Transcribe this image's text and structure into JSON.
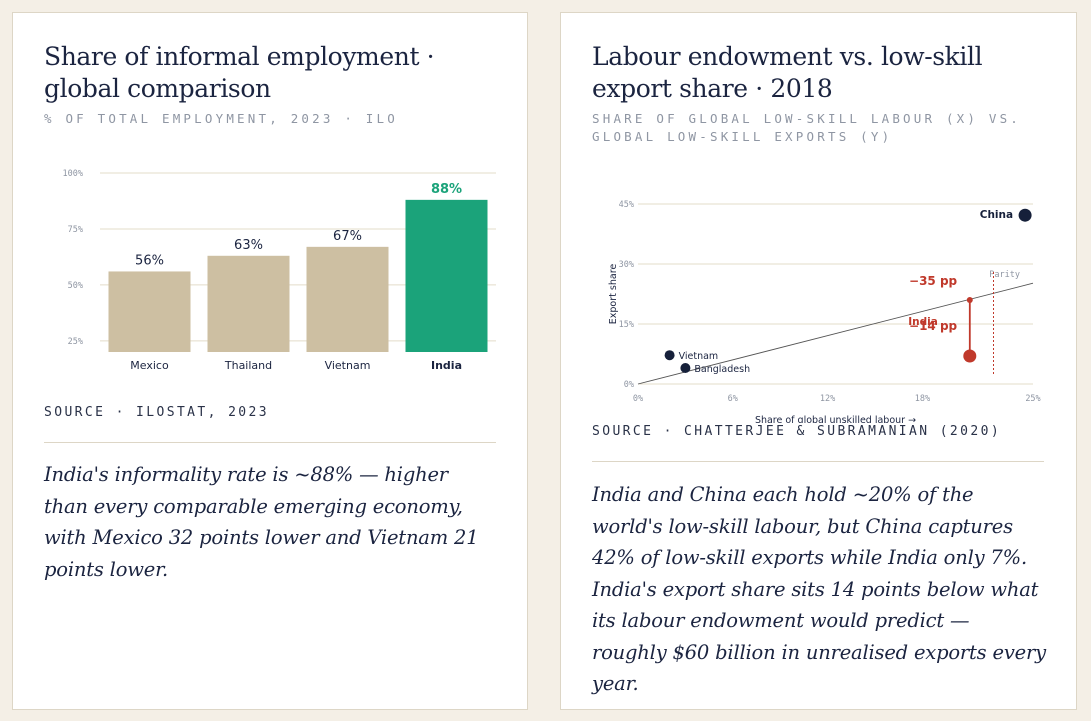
{
  "cards": [
    {
      "title_line1": "Share of informal employment ·",
      "title_line2": "global comparison",
      "subtitle": "% OF TOTAL EMPLOYMENT, 2023 · ILO",
      "source": "SOURCE · ILOSTAT, 2023",
      "caption": "India's informality rate is ~88% — higher than every comparable emerging economy, with Mexico 32 points lower and Vietnam 21 points lower."
    },
    {
      "title_line1": "Labour endowment vs. low-skill",
      "title_line2": "export share · 2018",
      "subtitle_line1": "SHARE OF GLOBAL LOW-SKILL LABOUR (X) VS.",
      "subtitle_line2": "GLOBAL LOW-SKILL EXPORTS (Y)",
      "source": "SOURCE · CHATTERJEE & SUBRAMANIAN (2020)",
      "caption": "India and China each hold ~20% of the world's low-skill labour, but China captures 42% of low-skill exports while India only 7%. India's export share sits 14 points below what its labour endowment would predict — roughly $60 billion in unrealised exports every year."
    }
  ],
  "chart_data": [
    {
      "type": "bar",
      "categories": [
        "Mexico",
        "Thailand",
        "Vietnam",
        "India"
      ],
      "values": [
        56,
        63,
        67,
        88
      ],
      "value_labels": [
        "56%",
        "63%",
        "67%",
        "88%"
      ],
      "highlight": "India",
      "ylim": [
        20,
        100
      ],
      "yticks": [
        25,
        50,
        75,
        100
      ],
      "ytick_labels": [
        "25%",
        "50%",
        "75%",
        "100%"
      ],
      "grid": true,
      "colors": {
        "bar": "#cdbfa2",
        "highlight": "#1ba37a",
        "grid": "#e3dcc9",
        "label": "#1b2440"
      }
    },
    {
      "type": "scatter",
      "xlabel": "Share of global unskilled labour →",
      "ylabel": "Export share",
      "xlim": [
        0,
        25
      ],
      "ylim": [
        0,
        45
      ],
      "xticks": [
        0,
        6,
        12,
        18,
        25
      ],
      "xtick_labels": [
        "0%",
        "6%",
        "12%",
        "18%",
        "25%"
      ],
      "yticks": [
        0,
        15,
        30,
        45
      ],
      "ytick_labels": [
        "0%",
        "15%",
        "30%",
        "45%"
      ],
      "grid": true,
      "points": [
        {
          "name": "China",
          "x": 24.5,
          "y": 42.2,
          "label_side": "left",
          "emphasis": true
        },
        {
          "name": "Vietnam",
          "x": 2.0,
          "y": 7.2,
          "label_side": "right"
        },
        {
          "name": "Bangladesh",
          "x": 3.0,
          "y": 4.0,
          "label_side": "right"
        },
        {
          "name": "India",
          "x": 21.0,
          "y": 7.0,
          "label_side": "left",
          "highlight": true
        }
      ],
      "parity_line": {
        "label": "Parity",
        "from": [
          0,
          0
        ],
        "to": [
          25,
          25.2
        ]
      },
      "parity_marker_x": 22.5,
      "india_expected": {
        "x": 21.0,
        "y": 21.0
      },
      "annotations": [
        {
          "text": "−35 pp",
          "x": 20.2,
          "y": 24.8
        },
        {
          "text": "−14 pp",
          "x": 20.2,
          "y": 13.5
        }
      ],
      "colors": {
        "point": "#16203a",
        "india": "#c0392b",
        "grid": "#e3dcc9",
        "parity": "#555555",
        "marker": "#c0392b"
      }
    }
  ]
}
